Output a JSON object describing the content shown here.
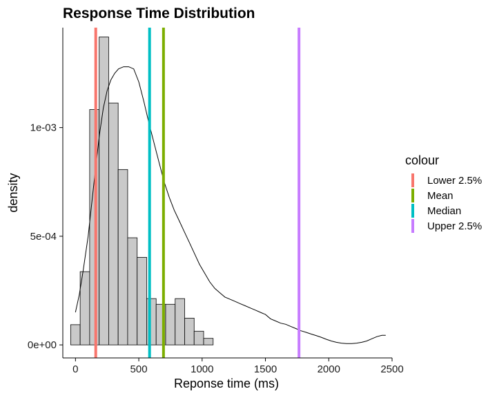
{
  "chart_data": {
    "type": "histogram",
    "title": "Response Time Distribution",
    "xlabel": "Reponse time (ms)",
    "ylabel": "density",
    "xlim": [
      -100,
      2500
    ],
    "ylim": [
      -6e-05,
      0.00146
    ],
    "x_ticks": [
      0,
      500,
      1000,
      1500,
      2000,
      2500
    ],
    "x_tick_labels": [
      "0",
      "500",
      "1000",
      "1500",
      "2000",
      "2500"
    ],
    "y_ticks": [
      0,
      0.0005,
      0.001
    ],
    "y_tick_labels": [
      "0e+00",
      "5e-04",
      "1e-03"
    ],
    "grid": false,
    "bin_width": 75,
    "bins": [
      {
        "x0": -38,
        "x1": 37,
        "density": 9.3e-05
      },
      {
        "x0": 37,
        "x1": 112,
        "density": 0.000337
      },
      {
        "x0": 112,
        "x1": 187,
        "density": 0.001083
      },
      {
        "x0": 187,
        "x1": 262,
        "density": 0.001417
      },
      {
        "x0": 262,
        "x1": 337,
        "density": 0.001113
      },
      {
        "x0": 337,
        "x1": 412,
        "density": 0.000807
      },
      {
        "x0": 412,
        "x1": 487,
        "density": 0.000493
      },
      {
        "x0": 487,
        "x1": 562,
        "density": 0.000403
      },
      {
        "x0": 562,
        "x1": 637,
        "density": 0.000213
      },
      {
        "x0": 637,
        "x1": 712,
        "density": 0.000187
      },
      {
        "x0": 712,
        "x1": 787,
        "density": 0.000187
      },
      {
        "x0": 787,
        "x1": 862,
        "density": 0.000213
      },
      {
        "x0": 862,
        "x1": 937,
        "density": 0.000123
      },
      {
        "x0": 937,
        "x1": 1012,
        "density": 6.3e-05
      },
      {
        "x0": 1012,
        "x1": 1087,
        "density": 3e-05
      },
      {
        "x0": 1087,
        "x1": 1162,
        "density": 0.0
      }
    ],
    "density_curve": {
      "x": [
        0,
        30,
        60,
        100,
        130,
        160,
        190,
        220,
        250,
        280,
        310,
        340,
        380,
        420,
        460,
        500,
        540,
        580,
        620,
        660,
        700,
        740,
        780,
        820,
        860,
        900,
        940,
        980,
        1020,
        1060,
        1100,
        1140,
        1180,
        1220,
        1260,
        1300,
        1340,
        1380,
        1420,
        1460,
        1500,
        1540,
        1580,
        1620,
        1660,
        1700,
        1740,
        1780,
        1820,
        1860,
        1900,
        1940,
        1980,
        2020,
        2060,
        2100,
        2140,
        2180,
        2220,
        2260,
        2300,
        2340,
        2380,
        2420,
        2450
      ],
      "y": [
        0.00015,
        0.00023,
        0.00034,
        0.0005,
        0.00066,
        0.00082,
        0.00097,
        0.00109,
        0.00117,
        0.00122,
        0.00125,
        0.00127,
        0.00128,
        0.00128,
        0.00127,
        0.00121,
        0.00112,
        0.00102,
        0.00093,
        0.00084,
        0.00075,
        0.00068,
        0.00062,
        0.00057,
        0.00052,
        0.00047,
        0.00042,
        0.00037,
        0.00033,
        0.00029,
        0.00026,
        0.00024,
        0.00022,
        0.00021,
        0.0002,
        0.00019,
        0.00018,
        0.00017,
        0.00016,
        0.00015,
        0.00014,
        0.00012,
        0.00011,
        0.0001,
        9.5e-05,
        8.5e-05,
        7.5e-05,
        6.5e-05,
        5.8e-05,
        5e-05,
        4.3e-05,
        3.5e-05,
        2.6e-05,
        1.8e-05,
        1.2e-05,
        8e-06,
        6e-06,
        6e-06,
        8e-06,
        1.2e-05,
        1.8e-05,
        2.8e-05,
        3.8e-05,
        4.4e-05,
        4.4e-05
      ]
    },
    "vlines": [
      {
        "name": "Lower 2.5%",
        "x": 160,
        "color": "#F8766D"
      },
      {
        "name": "Mean",
        "x": 695,
        "color": "#7CAE00"
      },
      {
        "name": "Median",
        "x": 585,
        "color": "#00BFC4"
      },
      {
        "name": "Upper 2.5%",
        "x": 1765,
        "color": "#C77CFF"
      }
    ],
    "legend": {
      "title": "colour",
      "placement": "right",
      "entries": [
        {
          "label": "Lower 2.5%",
          "color": "#F8766D"
        },
        {
          "label": "Mean",
          "color": "#7CAE00"
        },
        {
          "label": "Median",
          "color": "#00BFC4"
        },
        {
          "label": "Upper 2.5%",
          "color": "#C77CFF"
        }
      ]
    },
    "colors": {
      "bar_fill": "#C9C9C9",
      "bar_stroke": "#000000",
      "curve": "#000000",
      "axis": "#000000"
    }
  }
}
